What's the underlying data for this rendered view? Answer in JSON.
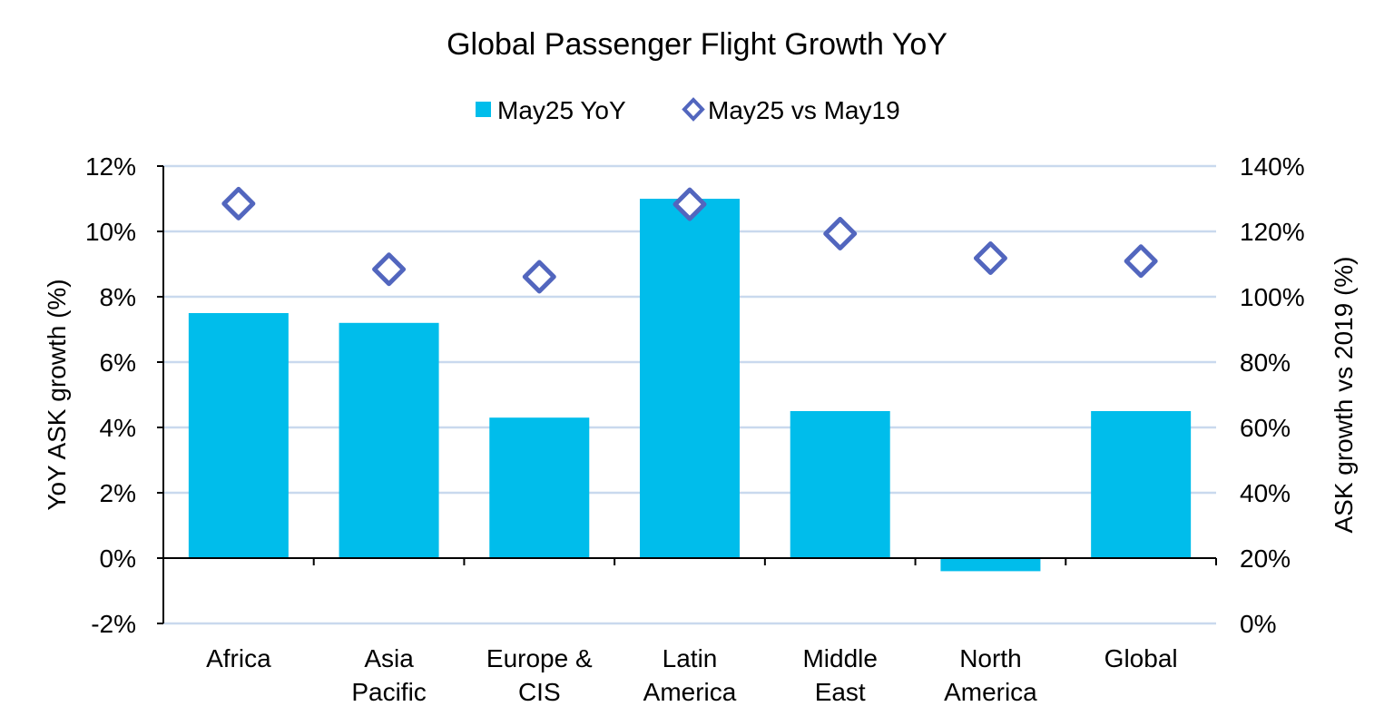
{
  "chart_data": {
    "type": "bar",
    "title": "Global Passenger Flight Growth YoY",
    "categories": [
      [
        "Africa"
      ],
      [
        "Asia",
        "Pacific"
      ],
      [
        "Europe &",
        "CIS"
      ],
      [
        "Latin",
        "America"
      ],
      [
        "Middle",
        "East"
      ],
      [
        "North",
        "America"
      ],
      [
        "Global"
      ]
    ],
    "series": [
      {
        "name": "May25 YoY",
        "type": "bar",
        "axis": "left",
        "color": "#00BDEB",
        "values": [
          7.5,
          7.2,
          4.3,
          11.0,
          4.5,
          -0.4,
          4.5
        ]
      },
      {
        "name": "May25 vs May19",
        "type": "scatter",
        "marker": "hollow-diamond",
        "axis": "right",
        "color": "#5266BE",
        "values": [
          128.5,
          108.4,
          106.1,
          128.3,
          119.3,
          111.8,
          110.9
        ]
      }
    ],
    "ylabel": "YoY ASK growth (%)",
    "ylim": [
      -2,
      12
    ],
    "yticks": [
      "-2%",
      "0%",
      "2%",
      "4%",
      "6%",
      "8%",
      "10%",
      "12%"
    ],
    "y2label": "ASK growth vs 2019 (%)",
    "y2lim": [
      0,
      140
    ],
    "y2ticks": [
      "0%",
      "20%",
      "40%",
      "60%",
      "80%",
      "100%",
      "120%",
      "140%"
    ],
    "grid": true,
    "grid_color": "#C9D9EE",
    "legend": "top-center"
  }
}
